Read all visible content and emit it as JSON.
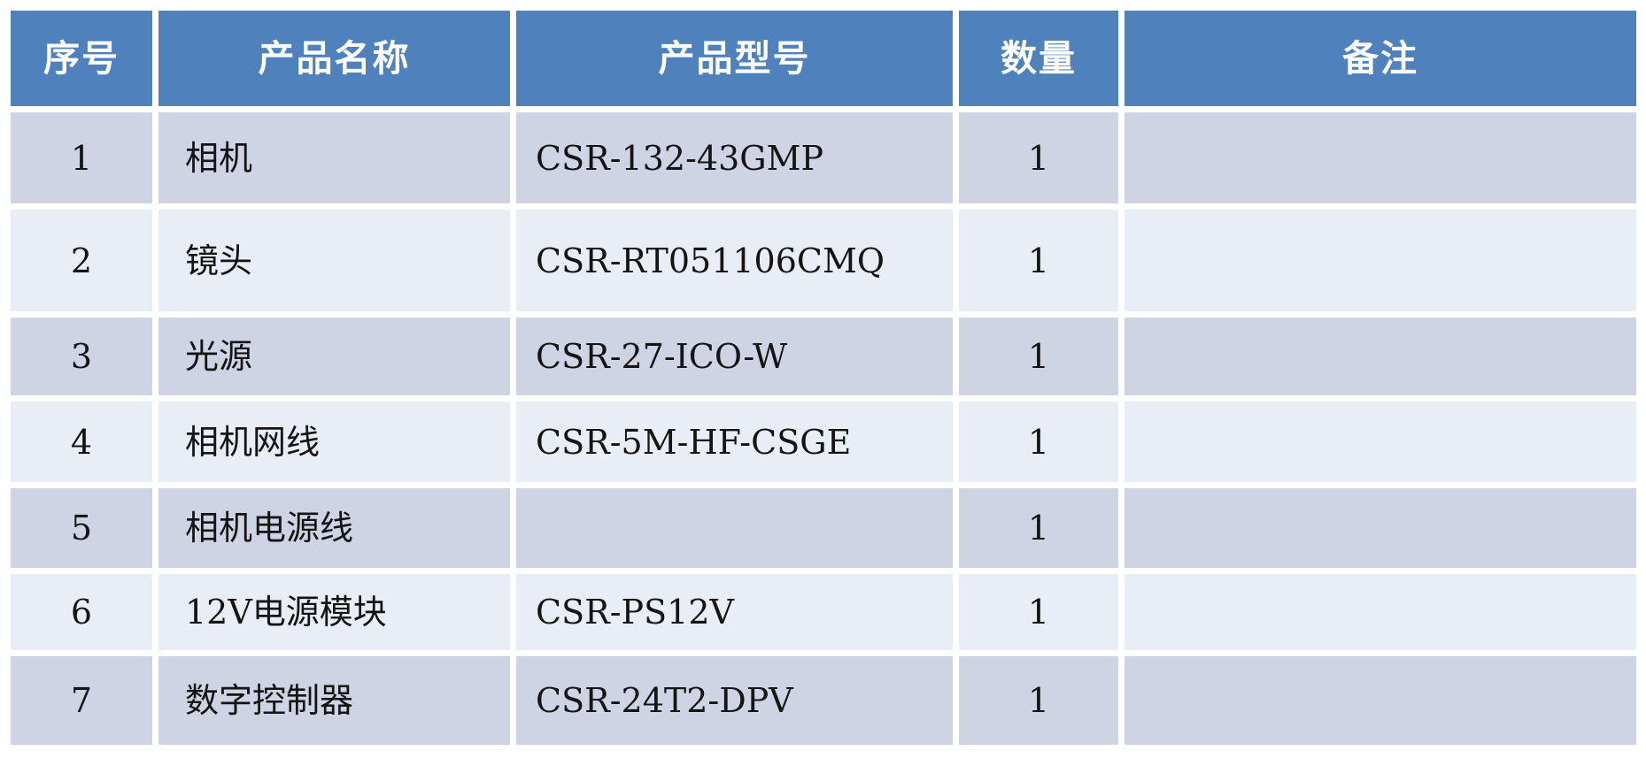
{
  "table": {
    "columns": [
      {
        "key": "index",
        "label": "序号"
      },
      {
        "key": "name",
        "label": "产品名称"
      },
      {
        "key": "model",
        "label": "产品型号"
      },
      {
        "key": "qty",
        "label": "数量"
      },
      {
        "key": "remark",
        "label": "备注"
      }
    ],
    "rows": [
      {
        "index": "1",
        "name": "相机",
        "model": "CSR-132-43GMP",
        "qty": "1",
        "remark": ""
      },
      {
        "index": "2",
        "name": "镜头",
        "model": "CSR-RT051106CMQ",
        "qty": "1",
        "remark": ""
      },
      {
        "index": "3",
        "name": "光源",
        "model": "CSR-27-ICO-W",
        "qty": "1",
        "remark": ""
      },
      {
        "index": "4",
        "name": "相机网线",
        "model": "CSR-5M-HF-CSGE",
        "qty": "1",
        "remark": ""
      },
      {
        "index": "5",
        "name": "相机电源线",
        "model": "",
        "qty": "1",
        "remark": ""
      },
      {
        "index": "6",
        "name": "12V电源模块",
        "model": "CSR-PS12V",
        "qty": "1",
        "remark": ""
      },
      {
        "index": "7",
        "name": "数字控制器",
        "model": "CSR-24T2-DPV",
        "qty": "1",
        "remark": ""
      }
    ],
    "colors": {
      "header_bg": "#4F81BD",
      "header_text": "#FFFFFF",
      "band_dark": "#CED4E4",
      "band_light": "#E9EDF5",
      "body_text": "#141414",
      "page_bg": "#FFFFFF"
    }
  }
}
